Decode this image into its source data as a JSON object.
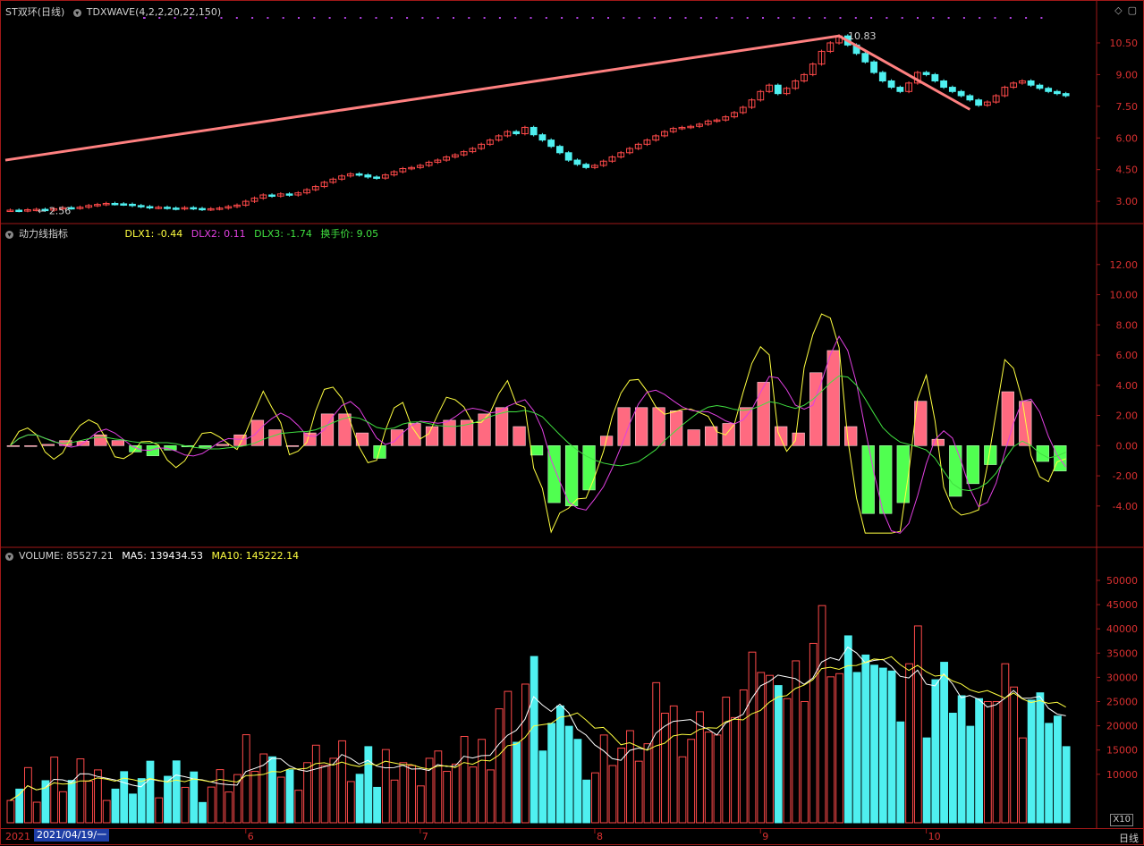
{
  "header": {
    "stock_title": "ST双环(日线)",
    "indicator": "TDXWAVE(4,2,2,20,22,150)"
  },
  "price_panel": {
    "high_label": "10.83",
    "low_label": "2.56",
    "yticks": [
      "10.50",
      "9.00",
      "7.50",
      "6.00",
      "4.50",
      "3.00"
    ]
  },
  "dlx_panel": {
    "name": "动力线指标",
    "dlx1": "DLX1: -0.44",
    "dlx2": "DLX2: 0.11",
    "dlx3": "DLX3: -1.74",
    "turnover": "换手价: 9.05",
    "yticks": [
      "12.00",
      "10.00",
      "8.00",
      "6.00",
      "4.00",
      "2.00",
      "0.00",
      "-2.00",
      "-4.00"
    ]
  },
  "volume_panel": {
    "volume": "VOLUME: 85527.21",
    "ma5": "MA5: 139434.53",
    "ma10": "MA10: 145222.14",
    "yticks": [
      "50000",
      "45000",
      "40000",
      "35000",
      "30000",
      "25000",
      "20000",
      "15000",
      "10000"
    ],
    "unit": "X10"
  },
  "xaxis": {
    "year": "2021",
    "date_box": "2021/04/19/一",
    "months": [
      "5",
      "6",
      "7",
      "8",
      "9",
      "10"
    ],
    "mode": "日线"
  },
  "colors": {
    "up": "#ff4a4a",
    "down": "#4ff0f0",
    "frame": "#a01818",
    "wave": "#ff8080",
    "dlx1": "#ffff40",
    "dlx2": "#e040e0",
    "dlx3": "#40e040"
  },
  "chart_data": {
    "type": "line",
    "title": "ST双环(日线)",
    "series": [
      {
        "name": "close",
        "values": [
          2.58,
          2.56,
          2.6,
          2.62,
          2.58,
          2.65,
          2.7,
          2.68,
          2.72,
          2.8,
          2.85,
          2.9,
          2.88,
          2.86,
          2.8,
          2.75,
          2.7,
          2.72,
          2.68,
          2.65,
          2.7,
          2.66,
          2.62,
          2.65,
          2.68,
          2.75,
          2.82,
          3.0,
          3.15,
          3.3,
          3.25,
          3.35,
          3.3,
          3.4,
          3.55,
          3.7,
          3.9,
          4.05,
          4.2,
          4.3,
          4.25,
          4.15,
          4.1,
          4.25,
          4.4,
          4.55,
          4.6,
          4.7,
          4.85,
          4.95,
          5.1,
          5.2,
          5.35,
          5.5,
          5.7,
          5.9,
          6.1,
          6.3,
          6.2,
          6.5,
          6.15,
          5.9,
          5.6,
          5.3,
          4.95,
          4.75,
          4.6,
          4.7,
          4.9,
          5.1,
          5.3,
          5.5,
          5.7,
          5.9,
          6.1,
          6.3,
          6.45,
          6.5,
          6.55,
          6.65,
          6.8,
          6.85,
          7.0,
          7.2,
          7.45,
          7.8,
          8.2,
          8.5,
          8.1,
          8.35,
          8.7,
          9.0,
          9.5,
          10.1,
          10.5,
          10.83,
          10.4,
          10.0,
          9.6,
          9.1,
          8.7,
          8.4,
          8.2,
          8.6,
          9.1,
          9.0,
          8.7,
          8.4,
          8.2,
          8.0,
          7.8,
          7.55,
          7.7,
          8.0,
          8.4,
          8.6,
          8.7,
          8.5,
          8.35,
          8.2,
          8.1,
          8.0
        ]
      }
    ],
    "xlabel": "",
    "ylabel": "",
    "ylim": [
      2.2,
      11.6
    ]
  }
}
